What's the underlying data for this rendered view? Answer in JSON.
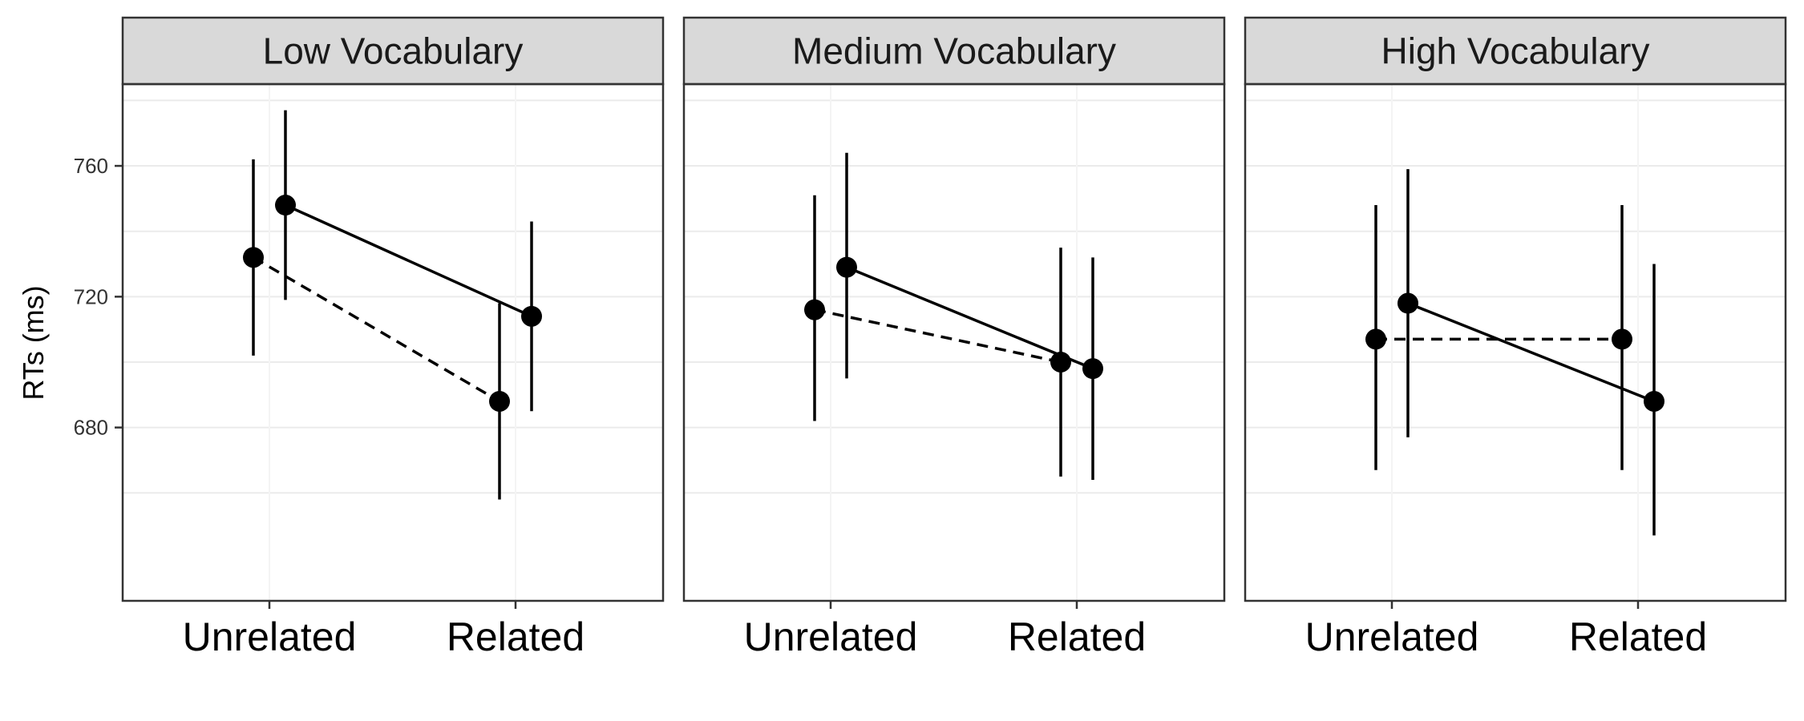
{
  "chart_data": {
    "type": "line",
    "ylabel": "RTs (ms)",
    "xlabel": "",
    "ylim": [
      627,
      785
    ],
    "yticks": [
      680,
      720,
      760
    ],
    "categories": [
      "Unrelated",
      "Related"
    ],
    "grid": true,
    "legend": "none",
    "panels": [
      {
        "title": "Low Vocabulary",
        "series": [
          {
            "line_style": "dashed",
            "values": [
              732,
              688
            ],
            "ci_low": [
              702,
              658
            ],
            "ci_high": [
              762,
              718
            ]
          },
          {
            "line_style": "solid",
            "values": [
              748,
              714
            ],
            "ci_low": [
              719,
              685
            ],
            "ci_high": [
              777,
              743
            ]
          }
        ]
      },
      {
        "title": "Medium Vocabulary",
        "series": [
          {
            "line_style": "dashed",
            "values": [
              716,
              700
            ],
            "ci_low": [
              682,
              665
            ],
            "ci_high": [
              751,
              735
            ]
          },
          {
            "line_style": "solid",
            "values": [
              729,
              698
            ],
            "ci_low": [
              695,
              664
            ],
            "ci_high": [
              764,
              732
            ]
          }
        ]
      },
      {
        "title": "High Vocabulary",
        "series": [
          {
            "line_style": "dashed",
            "values": [
              707,
              707
            ],
            "ci_low": [
              667,
              667
            ],
            "ci_high": [
              748,
              748
            ]
          },
          {
            "line_style": "solid",
            "values": [
              718,
              688
            ],
            "ci_low": [
              677,
              647
            ],
            "ci_high": [
              759,
              730
            ]
          }
        ]
      }
    ]
  }
}
